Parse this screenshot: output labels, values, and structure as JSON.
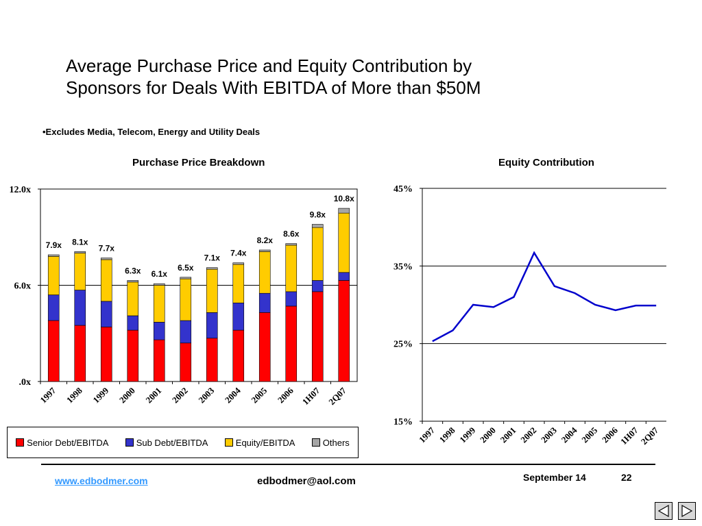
{
  "title_lines": [
    "Average Purchase Price and Equity Contribution by",
    "Sponsors for Deals With EBITDA of More than $50M"
  ],
  "note": "•Excludes Media, Telecom, Energy and Utility Deals",
  "chart_data": [
    {
      "type": "bar",
      "stacked": true,
      "title": "Purchase Price Breakdown",
      "categories": [
        "1997",
        "1998",
        "1999",
        "2000",
        "2001",
        "2002",
        "2003",
        "2004",
        "2005",
        "2006",
        "1H07",
        "2Q07"
      ],
      "series": [
        {
          "name": "Senior Debt/EBITDA",
          "color": "#ff0000",
          "values": [
            3.8,
            3.5,
            3.4,
            3.2,
            2.6,
            2.4,
            2.7,
            3.2,
            4.3,
            4.7,
            5.6,
            6.3
          ]
        },
        {
          "name": "Sub Debt/EBITDA",
          "color": "#3333cc",
          "values": [
            1.6,
            2.2,
            1.6,
            0.9,
            1.1,
            1.4,
            1.6,
            1.7,
            1.2,
            0.9,
            0.7,
            0.5
          ]
        },
        {
          "name": "Equity/EBITDA",
          "color": "#ffcc00",
          "values": [
            2.4,
            2.3,
            2.6,
            2.1,
            2.3,
            2.6,
            2.7,
            2.4,
            2.6,
            2.9,
            3.3,
            3.7
          ]
        },
        {
          "name": "Others",
          "color": "#a6a6a6",
          "values": [
            0.1,
            0.1,
            0.1,
            0.1,
            0.1,
            0.1,
            0.1,
            0.1,
            0.1,
            0.1,
            0.2,
            0.3
          ]
        }
      ],
      "total_labels": [
        "7.9x",
        "8.1x",
        "7.7x",
        "6.3x",
        "6.1x",
        "6.5x",
        "7.1x",
        "7.4x",
        "8.2x",
        "8.6x",
        "9.8x",
        "10.8x"
      ],
      "y_ticks": [
        ".0x",
        "6.0x",
        "12.0x"
      ],
      "ylim": [
        0,
        12
      ],
      "grid": true,
      "legend": "bottom"
    },
    {
      "type": "line",
      "title": "Equity Contribution",
      "x": [
        "1997",
        "1998",
        "1999",
        "2000",
        "2001",
        "2002",
        "2003",
        "2004",
        "2005",
        "2006",
        "1H07",
        "2Q07"
      ],
      "series": [
        {
          "color": "#0000cc",
          "values": [
            25.3,
            26.7,
            30.0,
            29.7,
            31.0,
            36.7,
            32.4,
            31.5,
            30.0,
            29.3,
            29.9,
            29.9
          ]
        }
      ],
      "y_ticks": [
        "15%",
        "25%",
        "35%",
        "45%"
      ],
      "ylim": [
        15,
        45
      ],
      "grid": true
    }
  ],
  "footer": {
    "link": "www.edbodmer.com",
    "email": "edbodmer@aol.com",
    "date": "September 14",
    "page": "22"
  },
  "nav": {
    "prev_icon": "previous-slide-icon",
    "next_icon": "next-slide-icon"
  }
}
